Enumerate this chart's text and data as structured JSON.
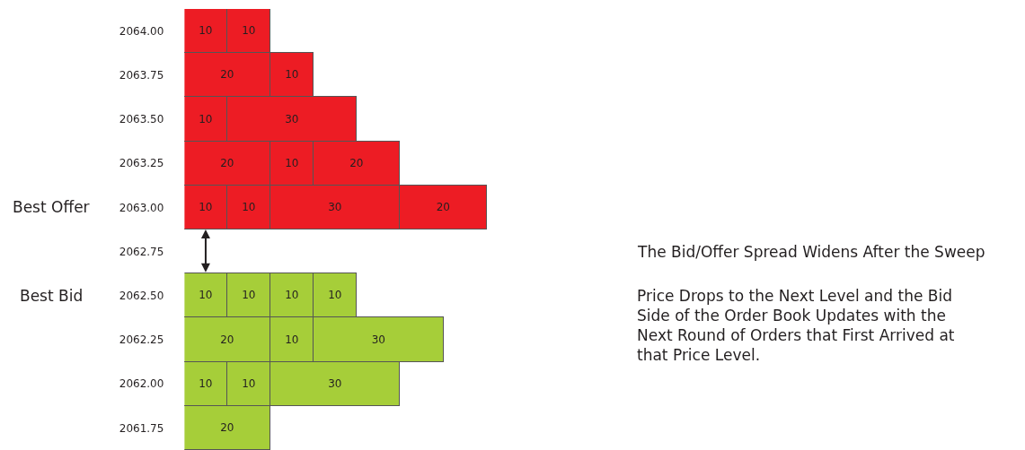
{
  "chart_data": {
    "type": "bar",
    "orientation": "horizontal",
    "stacked": true,
    "data_labels": true,
    "categories": [
      "2064.00",
      "2063.75",
      "2063.50",
      "2063.25",
      "2063.00",
      "2062.75",
      "2062.50",
      "2062.25",
      "2062.00",
      "2061.75"
    ],
    "series": [
      {
        "values": [
          10,
          20,
          10,
          20,
          10,
          null,
          10,
          20,
          10,
          20
        ],
        "colors": [
          "#ed1c24",
          "#ed1c24",
          "#ed1c24",
          "#ed1c24",
          "#ed1c24",
          "#ed1c24",
          "#a6ce39",
          "#a6ce39",
          "#a6ce39",
          "#a6ce39"
        ]
      },
      {
        "values": [
          10,
          10,
          30,
          10,
          10,
          null,
          10,
          10,
          10,
          null
        ],
        "colors": [
          "#ed1c24",
          "#ed1c24",
          "#ed1c24",
          "#ed1c24",
          "#ed1c24",
          "#ed1c24",
          "#a6ce39",
          "#a6ce39",
          "#a6ce39",
          "#a6ce39"
        ]
      },
      {
        "values": [
          null,
          null,
          null,
          20,
          30,
          null,
          10,
          30,
          30,
          null
        ],
        "colors": [
          "#ed1c24",
          "#ed1c24",
          "#ed1c24",
          "#ed1c24",
          "#ed1c24",
          "#ed1c24",
          "#a6ce39",
          "#a6ce39",
          "#a6ce39",
          "#a6ce39"
        ]
      },
      {
        "values": [
          null,
          null,
          null,
          null,
          20,
          null,
          10,
          null,
          null,
          null
        ],
        "colors": [
          "#ed1c24",
          "#ed1c24",
          "#ed1c24",
          "#ed1c24",
          "#ed1c24",
          "#ed1c24",
          "#a6ce39",
          "#a6ce39",
          "#a6ce39",
          "#a6ce39"
        ]
      }
    ],
    "annotations": [
      "Best Offer",
      "Best Bid",
      "The Bid/Offer Spread Widens After the Sweep",
      "Price Drops to the Next Level and the Bid Side of the Order Book Updates with the Next Round of Orders that First Arrived at that Price Level."
    ]
  }
}
